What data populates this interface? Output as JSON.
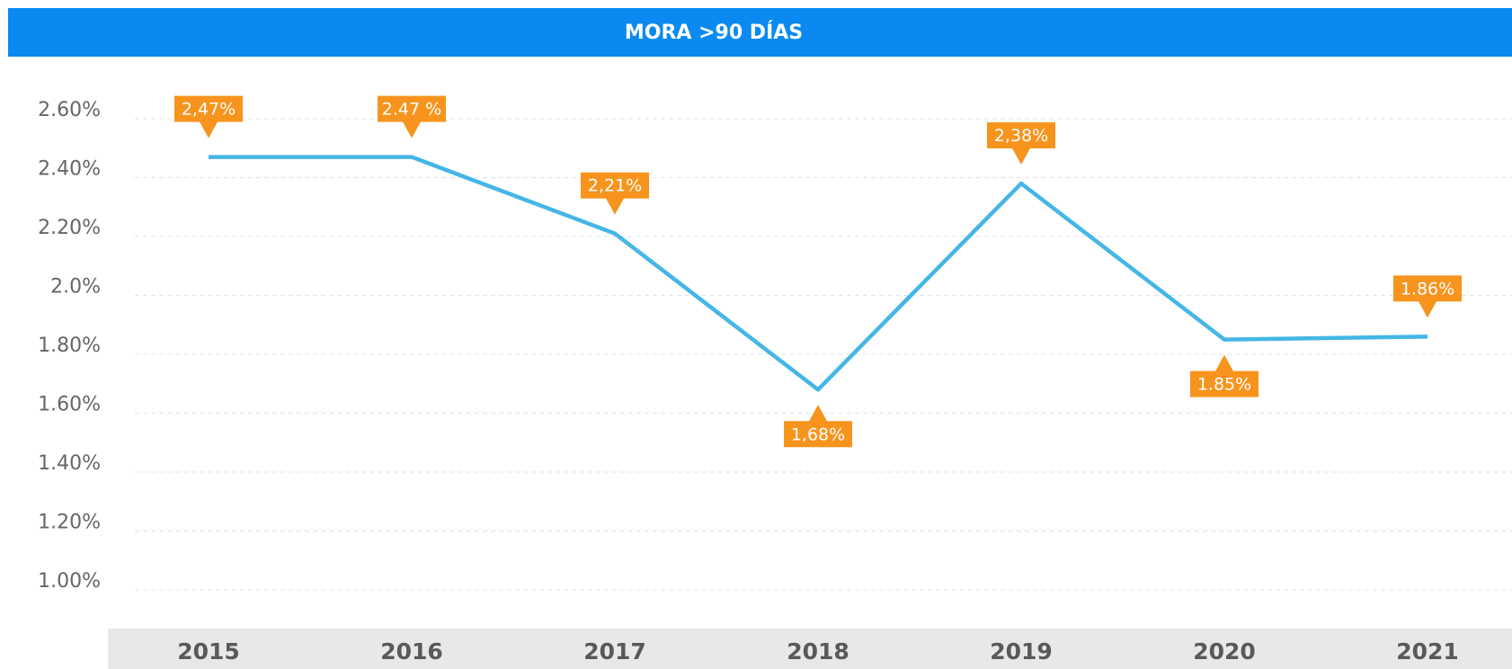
{
  "chart_data": {
    "type": "line",
    "title": "MORA >90 DÍAS",
    "categories": [
      "2015",
      "2016",
      "2017",
      "2018",
      "2019",
      "2020",
      "2021"
    ],
    "series": [
      {
        "name": null,
        "color": "#45b6e6",
        "values": [
          2.47,
          2.47,
          2.21,
          1.68,
          2.38,
          1.85,
          1.86
        ],
        "value_labels": [
          "2,47%",
          "2.47 %",
          "2,21%",
          "1,68%",
          "2,38%",
          "1.85%",
          "1.86%"
        ]
      }
    ],
    "ylim": [
      1.0,
      2.6
    ],
    "yticks": [
      {
        "value": 1.0,
        "label": "1.00%"
      },
      {
        "value": 1.2,
        "label": "1.20%"
      },
      {
        "value": 1.4,
        "label": "1.40%"
      },
      {
        "value": 1.6,
        "label": "1.60%"
      },
      {
        "value": 1.8,
        "label": "1.80%"
      },
      {
        "value": 2.0,
        "label": "2.0%"
      },
      {
        "value": 2.2,
        "label": "2.20%"
      },
      {
        "value": 2.4,
        "label": "2.40%"
      },
      {
        "value": 2.6,
        "label": "2.60%"
      }
    ],
    "grid": true,
    "label_color": "#f7941d"
  }
}
